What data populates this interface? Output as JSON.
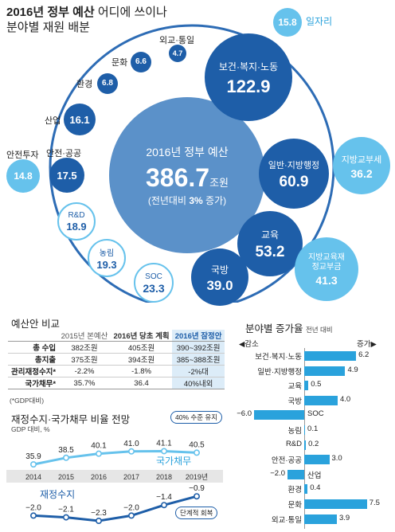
{
  "header": {
    "line1_bold": "2016년 정부 예산",
    "line1_rest": " 어디에 쓰이나",
    "line2": "분야별 재원 배분"
  },
  "total": {
    "title": "2016년 정부 예산",
    "value": "386.7",
    "unit": "조원",
    "sub_pre": "(전년대비 ",
    "sub_bold": "3%",
    "sub_post": " 증가)"
  },
  "bubbles": [
    {
      "label": "보건·복지·노동",
      "value": "122.9"
    },
    {
      "label": "일반·지방행정",
      "value": "60.9"
    },
    {
      "label": "교육",
      "value": "53.2"
    },
    {
      "label": "국방",
      "value": "39.0"
    },
    {
      "label": "SOC",
      "value": "23.3"
    },
    {
      "label": "농림",
      "value": "19.3"
    },
    {
      "label": "R&D",
      "value": "18.9"
    },
    {
      "label": "안전·공공",
      "value": "17.5"
    },
    {
      "label": "산업",
      "value": "16.1"
    },
    {
      "label": "환경",
      "value": "6.8"
    },
    {
      "label": "문화",
      "value": "6.6"
    },
    {
      "label": "외교·통일",
      "value": "4.7"
    },
    {
      "label": "일자리",
      "value": "15.8"
    },
    {
      "label": "지방교부세",
      "value": "36.2"
    },
    {
      "label": "지방교육재정교부금",
      "value": "41.3"
    },
    {
      "label": "안전투자",
      "value": "14.8"
    }
  ],
  "compare": {
    "title": "예산안 비교",
    "headers": [
      "",
      "2015년 본예산",
      "2016년 당초 계획",
      "2016년 잠정안"
    ],
    "rows": [
      [
        "총 수입",
        "382조원",
        "405조원",
        "390~392조원"
      ],
      [
        "총지출",
        "375조원",
        "394조원",
        "385~388조원"
      ],
      [
        "관리재정수지*",
        "-2.2%",
        "-1.8%",
        "-2%대"
      ],
      [
        "국가채무*",
        "35.7%",
        "36.4",
        "40%내외"
      ]
    ],
    "note": "(*GDP대비)"
  },
  "outlook": {
    "title": "재정수지·국가채무 비율 전망",
    "unit": "GDP 대비, %",
    "callout_top": "40% 수준 유지",
    "callout_bottom": "단계적 회복",
    "debt_label": "국가채무",
    "balance_label": "재정수지"
  },
  "growth": {
    "title": "분야별 증가율",
    "unit": "전년 대비",
    "left": "◀감소",
    "right": "증가▶"
  },
  "chart_data": [
    {
      "type": "line",
      "title": "재정수지·국가채무 비율 전망",
      "ylabel": "GDP 대비, %",
      "x": [
        "2014",
        "2015",
        "2016",
        "2017",
        "2018",
        "2019년"
      ],
      "series": [
        {
          "name": "국가채무",
          "values": [
            35.9,
            38.5,
            40.1,
            41.0,
            41.1,
            40.5
          ],
          "color": "#66c2ec"
        },
        {
          "name": "재정수지",
          "values": [
            -2.0,
            -2.1,
            -2.3,
            -2.0,
            -1.4,
            -0.9
          ],
          "color": "#1e5ea8"
        }
      ]
    },
    {
      "type": "bar",
      "title": "분야별 증가율",
      "categories": [
        "보건·복지·노동",
        "일반·지방행정",
        "교육",
        "국방",
        "SOC",
        "농림",
        "R&D",
        "안전·공공",
        "산업",
        "환경",
        "문화",
        "외교·통일"
      ],
      "values": [
        6.2,
        4.9,
        0.5,
        4.0,
        -6.0,
        0.1,
        0.2,
        3.0,
        -2.0,
        0.4,
        7.5,
        3.9
      ],
      "value_labels": [
        "6.2",
        "4.9",
        "0.5",
        "4.0",
        "−6.0",
        "0.1",
        "0.2",
        "3.0",
        "−2.0",
        "0.4",
        "7.5",
        "3.9"
      ],
      "color": "#2aa2dc"
    }
  ]
}
